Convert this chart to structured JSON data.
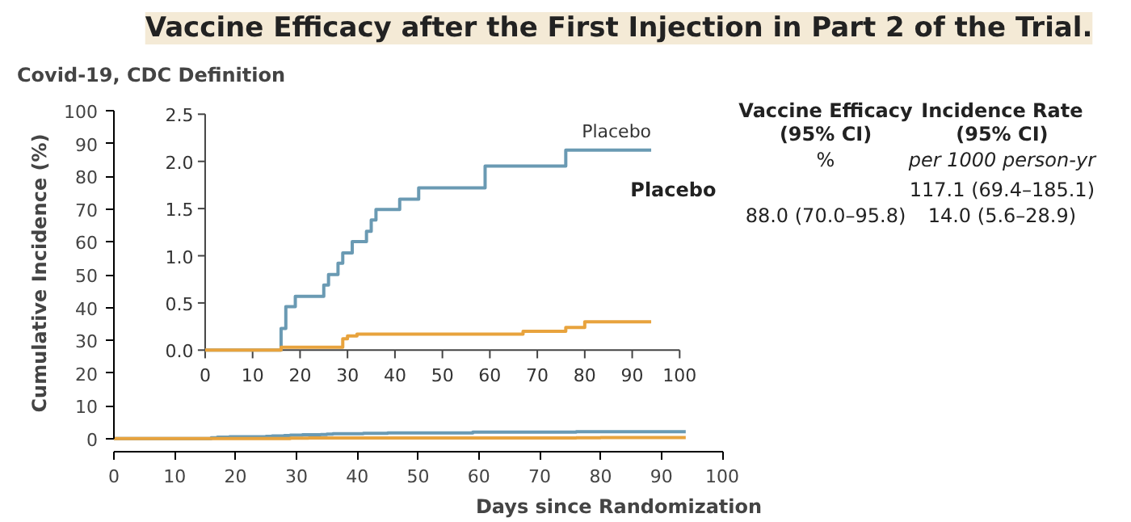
{
  "chart_data": [
    {
      "type": "step",
      "title": "Vaccine Efficacy after the First Injection in Part 2 of the Trial.",
      "subtitle": "Covid-19, CDC Definition",
      "xlabel": "Days since Randomization",
      "ylabel": "Cumulative Incidence (%)",
      "xlim": [
        0,
        100
      ],
      "ylim": [
        0,
        100
      ],
      "xticks": [
        0,
        10,
        20,
        30,
        40,
        50,
        60,
        70,
        80,
        90,
        100
      ],
      "yticks": [
        0,
        10,
        20,
        30,
        40,
        50,
        60,
        70,
        80,
        90,
        100
      ],
      "grid": false,
      "series": [
        {
          "color": "#6a9ab3",
          "x": [
            0,
            16,
            17,
            19,
            25,
            26,
            28,
            29,
            31,
            34,
            35,
            36,
            41,
            45,
            59,
            76,
            94
          ],
          "values": [
            0,
            0.23,
            0.46,
            0.57,
            0.69,
            0.8,
            0.92,
            1.03,
            1.15,
            1.26,
            1.38,
            1.49,
            1.6,
            1.72,
            1.95,
            2.12,
            2.12
          ]
        },
        {
          "color": "#e8a33d",
          "x": [
            0,
            16,
            29,
            30,
            32,
            67,
            76,
            80,
            94
          ],
          "values": [
            0,
            0.03,
            0.12,
            0.15,
            0.17,
            0.2,
            0.24,
            0.3,
            0.3
          ]
        }
      ],
      "annotations": [
        "Vaccine Efficacy",
        "(95% CI)",
        "%",
        "Incidence Rate",
        "(95% CI)",
        "per 1000 person-yr",
        "Placebo",
        "117.1 (69.4–185.1)",
        "88.0 (70.0–95.8)",
        "14.0 (5.6–28.9)"
      ]
    },
    {
      "type": "step",
      "xlim": [
        0,
        100
      ],
      "ylim": [
        0,
        2.5
      ],
      "xticks": [
        0,
        10,
        20,
        30,
        40,
        50,
        60,
        70,
        80,
        90,
        100
      ],
      "yticks": [
        {
          "value": 0,
          "label": "0.0"
        },
        {
          "value": 0.5,
          "label": "0.5"
        },
        {
          "value": 1,
          "label": "1.0"
        },
        {
          "value": 1.5,
          "label": "1.5"
        },
        {
          "value": 2,
          "label": "2.0"
        },
        {
          "value": 2.5,
          "label": "2.5"
        }
      ],
      "grid": false,
      "series": [
        {
          "name": "Placebo",
          "color": "#6a9ab3",
          "x": [
            0,
            16,
            17,
            19,
            25,
            26,
            28,
            29,
            31,
            34,
            35,
            36,
            41,
            45,
            59,
            76,
            94
          ],
          "values": [
            0,
            0.23,
            0.46,
            0.57,
            0.69,
            0.8,
            0.92,
            1.03,
            1.15,
            1.26,
            1.38,
            1.49,
            1.6,
            1.72,
            1.95,
            2.12,
            2.12
          ]
        },
        {
          "color": "#e8a33d",
          "x": [
            0,
            16,
            29,
            30,
            32,
            67,
            76,
            80,
            94
          ],
          "values": [
            0,
            0.03,
            0.12,
            0.15,
            0.17,
            0.2,
            0.24,
            0.3,
            0.3
          ]
        }
      ]
    }
  ]
}
